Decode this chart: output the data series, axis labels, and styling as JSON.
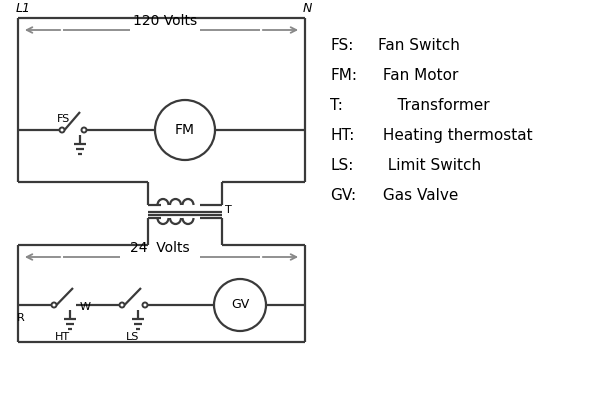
{
  "bg_color": "#ffffff",
  "line_color": "#3a3a3a",
  "arrow_color": "#888888",
  "text_color": "#000000",
  "legend_items": [
    [
      "FS:",
      "Fan Switch"
    ],
    [
      "FM:",
      " Fan Motor"
    ],
    [
      "T:",
      "    Transformer"
    ],
    [
      "HT:",
      " Heating thermostat"
    ],
    [
      "LS:",
      "  Limit Switch"
    ],
    [
      "GV:",
      " Gas Valve"
    ]
  ],
  "L1_label": "L1",
  "N_label": "N",
  "v120_label": "120 Volts",
  "v24_label": "24  Volts",
  "T_label": "T",
  "R_label": "R",
  "W_label": "W",
  "HT_label": "HT",
  "LS_label": "LS",
  "FS_label": "FS",
  "FM_label": "FM",
  "GV_label": "GV"
}
